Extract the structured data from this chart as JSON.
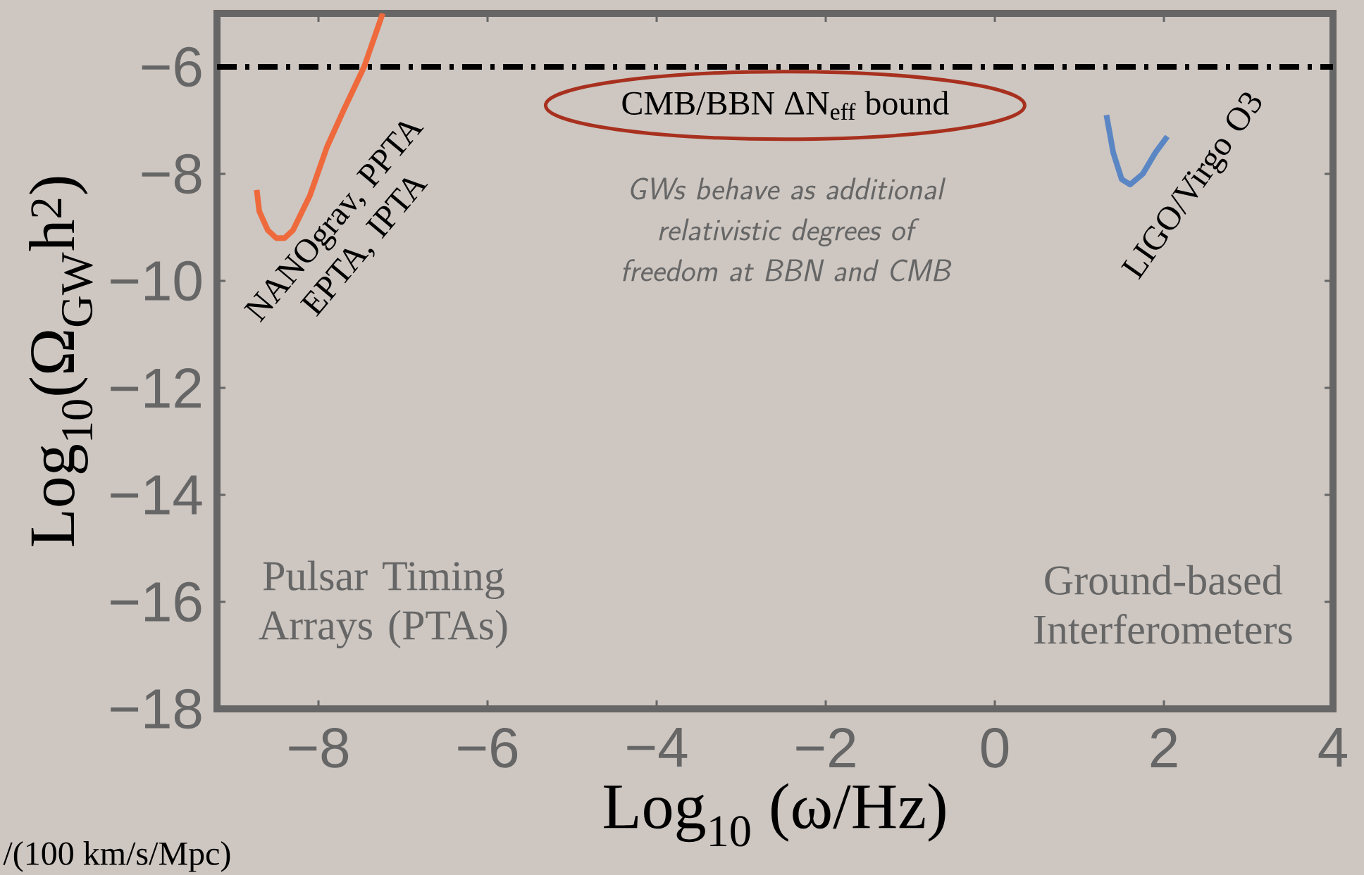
{
  "chart_data": {
    "type": "line",
    "xlabel": "Log$_{10}$ (ω/Hz)",
    "ylabel": "Log$_{10}$(Ω$_{GW}$h$^{2}$)",
    "xlim": [
      -9.2,
      4
    ],
    "ylim": [
      -18,
      -5
    ],
    "xticks": [
      {
        "value": -8,
        "label": "−8"
      },
      {
        "value": -6,
        "label": "−6"
      },
      {
        "value": -4,
        "label": "−4"
      },
      {
        "value": -2,
        "label": "−2"
      },
      0,
      2,
      4
    ],
    "yticks": [
      {
        "value": -18,
        "label": "−18"
      },
      {
        "value": -16,
        "label": "−16"
      },
      {
        "value": -14,
        "label": "−14"
      },
      {
        "value": -12,
        "label": "−12"
      },
      {
        "value": -10,
        "label": "−10"
      },
      {
        "value": -8,
        "label": "−8"
      },
      {
        "value": -6,
        "label": "−6"
      }
    ],
    "series": [
      {
        "name": "NANOgrav, PPTA EPTA, IPTA",
        "color": "#ee6a3c",
        "x": [
          -8.73,
          -8.7,
          -8.6,
          -8.5,
          -8.4,
          -8.3,
          -8.1,
          -7.9,
          -7.7,
          -7.46,
          -7.24
        ],
        "values": [
          -8.3,
          -8.7,
          -9.05,
          -9.2,
          -9.2,
          -9.05,
          -8.4,
          -7.5,
          -6.8,
          -6.0,
          -5.0
        ]
      },
      {
        "name": "LIGO/Virgo O3",
        "color": "#5b86c4",
        "x": [
          1.32,
          1.4,
          1.5,
          1.6,
          1.75,
          1.9,
          2.04
        ],
        "values": [
          -6.9,
          -7.6,
          -8.1,
          -8.2,
          -8.0,
          -7.6,
          -7.3
        ]
      }
    ],
    "ref_lines": [
      {
        "axis": "y",
        "value": -6,
        "color": "#000000",
        "line_style": "dashdot"
      }
    ],
    "annotations": [
      "CMB/BBN ΔN$_{eff}$ bound",
      "GWs behave as additional relativistic degrees of freedom at BBN and CMB",
      "Pulsar Timing Arrays (PTAs)",
      "Ground-based Interferometers",
      "/(100 km/s/Mpc)"
    ],
    "grid": false,
    "legend": false,
    "marker": "none",
    "line_style": "solid"
  }
}
